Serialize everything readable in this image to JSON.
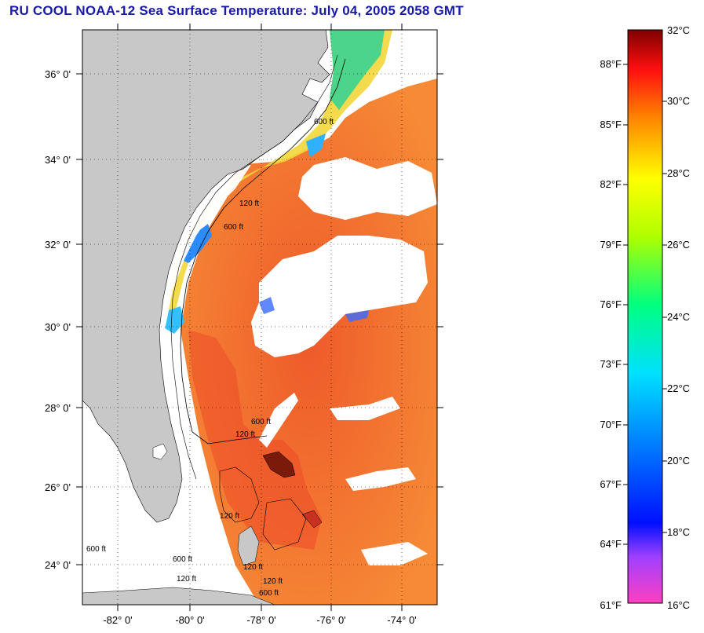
{
  "title": "RU COOL  NOAA-12  Sea Surface Temperature:  July 04, 2005 2058 GMT",
  "map": {
    "lat_labels": [
      "36° 0'",
      "34° 0'",
      "32° 0'",
      "30° 0'",
      "28° 0'",
      "26° 0'",
      "24° 0'"
    ],
    "lon_labels": [
      "-82° 0'",
      "-80° 0'",
      "-78° 0'",
      "-76° 0'",
      "-74° 0'"
    ],
    "contour_labels": [
      "600 ft",
      "120 ft",
      "600 ft",
      "120 ft",
      "600 ft",
      "120 ft",
      "600 ft",
      "120 ft",
      "600 ft",
      "120 ft",
      "600 ft",
      "120 ft"
    ],
    "colors": {
      "land": "#c8c8c8",
      "cloud": "#ffffff",
      "water_warm": "#f47a2e",
      "water_hot": "#e0462a",
      "water_cool": "#2aa0ff"
    }
  },
  "colorbar": {
    "celsius_labels": [
      "32°C",
      "30°C",
      "28°C",
      "26°C",
      "24°C",
      "22°C",
      "20°C",
      "18°C",
      "16°C"
    ],
    "fahrenheit_labels": [
      "88°F",
      "85°F",
      "82°F",
      "79°F",
      "76°F",
      "73°F",
      "70°F",
      "67°F",
      "64°F",
      "61°F"
    ],
    "gradient_stops": [
      "#ff40c0",
      "#a040ff",
      "#0010ff",
      "#0080ff",
      "#00e0ff",
      "#00ff80",
      "#b0ff00",
      "#ffff00",
      "#ff8000",
      "#ff1010",
      "#800000"
    ]
  }
}
